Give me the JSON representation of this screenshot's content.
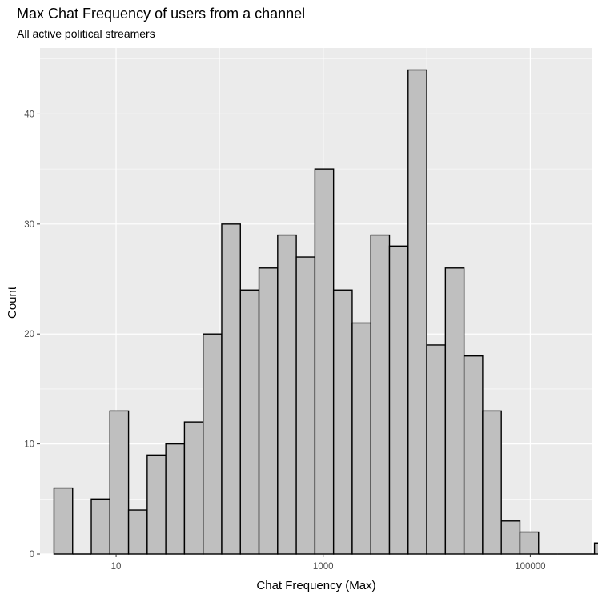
{
  "chart_data": {
    "type": "bar",
    "title": "Max Chat Frequency of users from a channel",
    "subtitle": "All active political streamers",
    "xlabel": "Chat Frequency (Max)",
    "ylabel": "Count",
    "x_scale": "log10",
    "xlim_log10": [
      0.265,
      5.6
    ],
    "ylim": [
      0,
      46
    ],
    "bin_width_log10": 0.18,
    "first_bin_left_log10": 0.4,
    "x_ticks": [
      {
        "value": 10,
        "label": "10"
      },
      {
        "value": 1000,
        "label": "1000"
      },
      {
        "value": 100000,
        "label": "100000"
      }
    ],
    "y_ticks": [
      0,
      10,
      20,
      30,
      40
    ],
    "values": [
      6,
      0,
      5,
      13,
      4,
      9,
      10,
      12,
      20,
      30,
      24,
      26,
      29,
      27,
      35,
      24,
      21,
      29,
      28,
      44,
      19,
      26,
      18,
      13,
      3,
      2,
      0,
      0,
      0,
      1
    ],
    "bar_fill": "#bfbfbf",
    "bar_stroke": "#000000",
    "panel_background": "#ebebeb",
    "grid_color": "#ffffff",
    "grid": true
  }
}
